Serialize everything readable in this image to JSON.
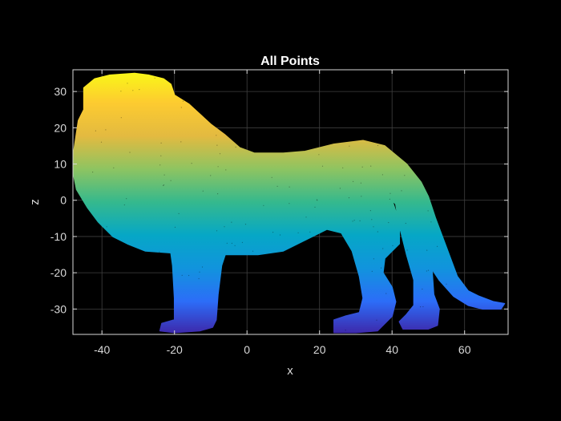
{
  "chart_data": {
    "type": "scatter",
    "title": "All Points",
    "xlabel": "x",
    "ylabel": "z",
    "xlim": [
      -48,
      72
    ],
    "ylim": [
      -37,
      36
    ],
    "grid": true,
    "xticks": [
      "-40",
      "-20",
      "0",
      "20",
      "40",
      "60"
    ],
    "xtick_values": [
      -40,
      -20,
      0,
      20,
      40,
      60
    ],
    "yticks": [
      "30",
      "20",
      "10",
      "0",
      "-10",
      "-20",
      "-30"
    ],
    "ytick_values": [
      30,
      20,
      10,
      0,
      -10,
      -20,
      -30
    ],
    "colormap": "parula",
    "color_by": "z",
    "colormap_stops": [
      "#3e26a8",
      "#2c6df8",
      "#1194dd",
      "#06a7c6",
      "#35b98d",
      "#8ec461",
      "#e3ba40",
      "#fdcb30",
      "#f9fb15"
    ],
    "series": [
      {
        "outline": [
          [
            -48,
            12
          ],
          [
            -46.5,
            22
          ],
          [
            -45,
            25
          ],
          [
            -45,
            31
          ],
          [
            -42,
            33.5
          ],
          [
            -38,
            34.5
          ],
          [
            -31,
            35
          ],
          [
            -27,
            34.5
          ],
          [
            -23,
            33.5
          ],
          [
            -21,
            32
          ],
          [
            -20,
            29
          ],
          [
            -16,
            26.5
          ],
          [
            -10,
            21
          ],
          [
            -6,
            18
          ],
          [
            -2,
            14.5
          ],
          [
            2,
            13
          ],
          [
            10,
            13
          ],
          [
            16,
            13.5
          ],
          [
            24,
            15.5
          ],
          [
            32,
            16.5
          ],
          [
            38,
            15
          ],
          [
            44,
            10
          ],
          [
            48,
            5
          ],
          [
            50,
            1
          ],
          [
            52,
            -5
          ],
          [
            55,
            -13
          ],
          [
            58,
            -21
          ],
          [
            61,
            -25
          ],
          [
            64,
            -26.5
          ],
          [
            68,
            -28
          ],
          [
            71,
            -28.5
          ],
          [
            70,
            -30
          ],
          [
            65,
            -30
          ],
          [
            61,
            -29
          ],
          [
            57,
            -26.5
          ],
          [
            53,
            -22
          ],
          [
            51,
            -19
          ],
          [
            51.5,
            -26
          ],
          [
            53,
            -30
          ],
          [
            52.5,
            -34.5
          ],
          [
            50,
            -35.5
          ],
          [
            43,
            -35.5
          ],
          [
            42,
            -33.5
          ],
          [
            44,
            -31.5
          ],
          [
            46,
            -29
          ],
          [
            46,
            -22
          ],
          [
            44,
            -15
          ],
          [
            42,
            -7
          ],
          [
            41,
            -1
          ],
          [
            40,
            0
          ],
          [
            42,
            -6
          ],
          [
            42,
            -12
          ],
          [
            40,
            -14
          ],
          [
            38,
            -16
          ],
          [
            37.5,
            -20
          ],
          [
            40,
            -24
          ],
          [
            41,
            -28
          ],
          [
            40,
            -32
          ],
          [
            36,
            -36
          ],
          [
            30,
            -36.5
          ],
          [
            24,
            -36.5
          ],
          [
            24,
            -33
          ],
          [
            27,
            -32
          ],
          [
            31,
            -31
          ],
          [
            32,
            -27
          ],
          [
            31,
            -21
          ],
          [
            29,
            -14
          ],
          [
            26,
            -9
          ],
          [
            22,
            -8
          ],
          [
            16,
            -11
          ],
          [
            10,
            -14
          ],
          [
            3,
            -15
          ],
          [
            -6,
            -15
          ],
          [
            -7,
            -18
          ],
          [
            -8,
            -26
          ],
          [
            -8.5,
            -33
          ],
          [
            -9.5,
            -35
          ],
          [
            -13,
            -36
          ],
          [
            -20,
            -36.5
          ],
          [
            -24,
            -36
          ],
          [
            -23.5,
            -34
          ],
          [
            -20,
            -33
          ],
          [
            -20,
            -27
          ],
          [
            -20.5,
            -18
          ],
          [
            -21,
            -14.5
          ],
          [
            -28,
            -14
          ],
          [
            -33,
            -12
          ],
          [
            -37,
            -10
          ],
          [
            -41,
            -6
          ],
          [
            -44,
            -2
          ],
          [
            -47,
            3
          ],
          [
            -48,
            8
          ]
        ]
      }
    ]
  }
}
